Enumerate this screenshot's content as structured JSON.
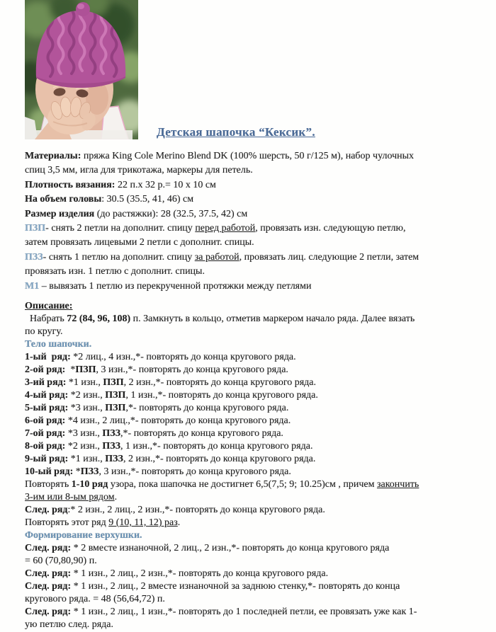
{
  "title": {
    "text": "Детская шапочка “Кексик”."
  },
  "colors": {
    "title": "#4a6a96",
    "heading": "#6a92b4",
    "accent": "#83a6c4",
    "text": "#1f1f1f",
    "hat_pink": "#b2549a",
    "photo_bg_green": "#4f6a3f"
  },
  "photo": {
    "description": "baby wearing pink knitted cupcake hat"
  },
  "lines": [
    {
      "runs": [
        {
          "t": "Материалы:",
          "b": true
        },
        {
          "t": " пряжа King Cole Merino Blend DK (100% шерсть, 50 г/125 м), набор чулочных"
        }
      ]
    },
    {
      "runs": [
        {
          "t": "спиц 3,5 мм, игла для трикотажа, маркеры для петель."
        }
      ]
    },
    {
      "runs": [
        {
          "t": "Плотность вязания:",
          "b": true
        },
        {
          "t": " 22 п.х 32 р.= 10 х 10 см"
        }
      ]
    },
    {
      "runs": [
        {
          "t": "На объем головы",
          "b": true
        },
        {
          "t": ": 30.5 (35.5, 41, 46) см"
        }
      ]
    },
    {
      "runs": [
        {
          "t": "Размер изделия",
          "b": true
        },
        {
          "t": " (до растяжки): 28 (32.5, 37.5, 42) см"
        }
      ]
    },
    {
      "runs": [
        {
          "t": "ПЗП",
          "b": true,
          "c": "accent"
        },
        {
          "t": "- снять 2 петли на дополнит. спицу "
        },
        {
          "t": "перед работой",
          "u": true
        },
        {
          "t": ", провязать изн. следующую петлю,"
        }
      ]
    },
    {
      "runs": [
        {
          "t": "затем провязать лицевыми 2 петли с дополнит. спицы."
        }
      ]
    },
    {
      "runs": [
        {
          "t": "ПЗЗ",
          "b": true,
          "c": "accent"
        },
        {
          "t": "- снять 1 петлю на дополнит. спицу "
        },
        {
          "t": "за работой",
          "u": true
        },
        {
          "t": ", провязать лиц. следующие 2 петли, затем"
        }
      ]
    },
    {
      "runs": [
        {
          "t": "провязать изн. 1 петлю с дополнит. спицы."
        }
      ]
    },
    {
      "runs": [
        {
          "t": "М1",
          "b": true,
          "c": "accent"
        },
        {
          "t": " – вывязать 1 петлю из перекрученной протяжки между петлями"
        }
      ]
    },
    {
      "runs": []
    },
    {
      "runs": [
        {
          "t": "Описание:",
          "b": true,
          "u": true
        }
      ]
    },
    {
      "runs": [
        {
          "t": "  Набрать "
        },
        {
          "t": "72 (84, 96, 108)",
          "b": true
        },
        {
          "t": " п. Замкнуть в кольцо, отметив маркером начало ряда. Далее вязать"
        }
      ]
    },
    {
      "runs": [
        {
          "t": "по кругу."
        }
      ]
    },
    {
      "runs": [
        {
          "t": "Тело шапочки.",
          "b": true,
          "c": "heading"
        }
      ]
    },
    {
      "runs": [
        {
          "t": "1-ый  ряд:",
          "b": true
        },
        {
          "t": " *2 лиц., 4 изн.,*- повторять до конца кругового ряда."
        }
      ]
    },
    {
      "runs": [
        {
          "t": "2-ой ряд:",
          "b": true
        },
        {
          "t": "  *"
        },
        {
          "t": "ПЗП",
          "b": true
        },
        {
          "t": ", 3 изн.,*- повторять до конца кругового ряда."
        }
      ]
    },
    {
      "runs": [
        {
          "t": "3-ий ряд:",
          "b": true
        },
        {
          "t": " *1 изн., "
        },
        {
          "t": "ПЗП",
          "b": true
        },
        {
          "t": ", 2 изн.,*- повторять до конца кругового ряда."
        }
      ]
    },
    {
      "runs": [
        {
          "t": "4-ый ряд:",
          "b": true
        },
        {
          "t": " *2 изн., "
        },
        {
          "t": "ПЗП",
          "b": true
        },
        {
          "t": ", 1 изн.,*- повторять до конца кругового ряда."
        }
      ]
    },
    {
      "runs": [
        {
          "t": "5-ый ряд:",
          "b": true
        },
        {
          "t": " *3 изн., "
        },
        {
          "t": "ПЗП",
          "b": true
        },
        {
          "t": ",*- повторять до конца кругового ряда."
        }
      ]
    },
    {
      "runs": [
        {
          "t": "6-ой ряд:",
          "b": true
        },
        {
          "t": " *4 изн., 2 лиц.,*- повторять до конца кругового ряда."
        }
      ]
    },
    {
      "runs": [
        {
          "t": "7-ой ряд:",
          "b": true
        },
        {
          "t": " *3 изн., "
        },
        {
          "t": "ПЗЗ",
          "b": true
        },
        {
          "t": ",*- повторять до конца кругового ряда."
        }
      ]
    },
    {
      "runs": [
        {
          "t": "8-ой ряд:",
          "b": true
        },
        {
          "t": " *2 изн., "
        },
        {
          "t": "ПЗЗ",
          "b": true
        },
        {
          "t": ", 1 изн.,*- повторять до конца кругового ряда."
        }
      ]
    },
    {
      "runs": [
        {
          "t": "9-ый ряд:",
          "b": true
        },
        {
          "t": " *1 изн., "
        },
        {
          "t": "ПЗЗ",
          "b": true
        },
        {
          "t": ", 2 изн.,*- повторять до конца кругового ряда."
        }
      ]
    },
    {
      "runs": [
        {
          "t": "10-ый ряд:",
          "b": true
        },
        {
          "t": " *"
        },
        {
          "t": "ПЗЗ",
          "b": true
        },
        {
          "t": ", 3 изн.,*- повторять до конца кругового ряда."
        }
      ]
    },
    {
      "runs": [
        {
          "t": "Повторять "
        },
        {
          "t": "1-10 ряд",
          "b": true
        },
        {
          "t": " узора, пока шапочка не достигнет 6,5(7,5; 9; 10.25)см , причем "
        },
        {
          "t": "закончить",
          "u": true
        }
      ]
    },
    {
      "runs": [
        {
          "t": "3-им или 8-ым рядом",
          "u": true
        },
        {
          "t": "."
        }
      ]
    },
    {
      "runs": [
        {
          "t": "След. ряд",
          "b": true
        },
        {
          "t": ":* 2 изн., 2 лиц., 2 изн.,*- повторять до конца кругового ряда."
        }
      ]
    },
    {
      "runs": [
        {
          "t": "Повторять этот ряд "
        },
        {
          "t": "9 (10, 11, 12) раз",
          "u": true
        },
        {
          "t": "."
        }
      ]
    },
    {
      "runs": [
        {
          "t": "Формирование верхушки.",
          "b": true,
          "c": "heading"
        }
      ]
    },
    {
      "runs": [
        {
          "t": "След. ряд:",
          "b": true
        },
        {
          "t": " * 2 вместе изнаночной, 2 лиц., 2 изн.,*- повторять до конца кругового ряда"
        }
      ]
    },
    {
      "runs": [
        {
          "t": "= 60 (70,80,90) п."
        }
      ]
    },
    {
      "runs": [
        {
          "t": "След. ряд:",
          "b": true
        },
        {
          "t": " * 1 изн., 2 лиц., 2 изн.,*- повторять до конца кругового ряда."
        }
      ]
    },
    {
      "runs": [
        {
          "t": "След. ряд:",
          "b": true
        },
        {
          "t": " * 1 изн., 2 лиц., 2 вместе изнаночной за заднюю стенку,*- повторять до конца"
        }
      ]
    },
    {
      "runs": [
        {
          "t": "кругового ряда. = 48 (56,64,72) п."
        }
      ]
    },
    {
      "runs": [
        {
          "t": "След. ряд:",
          "b": true
        },
        {
          "t": " * 1 изн., 2 лиц., 1 изн.,*- повторять до 1 последней петли, ее провязать уже как 1-"
        }
      ]
    },
    {
      "runs": [
        {
          "t": "ую петлю след. ряда."
        }
      ]
    }
  ]
}
